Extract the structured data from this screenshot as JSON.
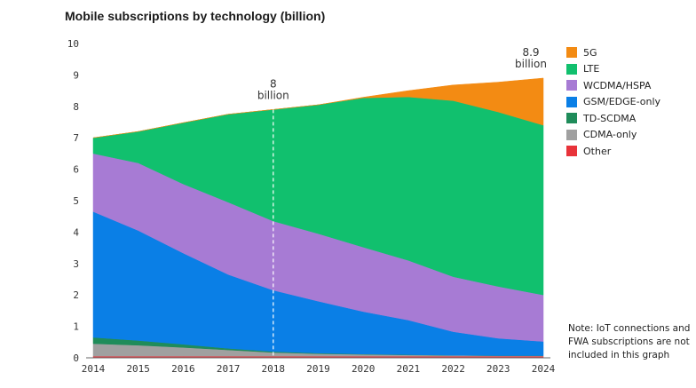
{
  "chart_data": {
    "type": "area",
    "title": "Mobile subscriptions by technology (billion)",
    "x": [
      "2014",
      "2015",
      "2016",
      "2017",
      "2018",
      "2019",
      "2020",
      "2021",
      "2022",
      "2023",
      "2024"
    ],
    "ylim": [
      0,
      10
    ],
    "yticks": [
      0,
      1,
      2,
      3,
      4,
      5,
      6,
      7,
      8,
      9,
      10
    ],
    "grid": false,
    "stacked": true,
    "series": [
      {
        "name": "Other",
        "color": "#e8333a",
        "values": [
          0.05,
          0.05,
          0.05,
          0.05,
          0.05,
          0.05,
          0.05,
          0.05,
          0.05,
          0.05,
          0.05
        ]
      },
      {
        "name": "CDMA-only",
        "color": "#a0a0a0",
        "values": [
          0.4,
          0.35,
          0.28,
          0.2,
          0.12,
          0.08,
          0.06,
          0.04,
          0.03,
          0.02,
          0.02
        ]
      },
      {
        "name": "TD-SCDMA",
        "color": "#1f8c5a",
        "values": [
          0.2,
          0.15,
          0.1,
          0.05,
          0.03,
          0.02,
          0.01,
          0.01,
          0.0,
          0.0,
          0.0
        ]
      },
      {
        "name": "GSM/EDGE-only",
        "color": "#0a7fe6",
        "values": [
          4.0,
          3.5,
          2.9,
          2.35,
          1.95,
          1.65,
          1.35,
          1.1,
          0.75,
          0.55,
          0.45
        ]
      },
      {
        "name": "WCDMA/HSPA",
        "color": "#a77bd4",
        "values": [
          1.85,
          2.15,
          2.2,
          2.3,
          2.2,
          2.15,
          2.05,
          1.9,
          1.75,
          1.65,
          1.48
        ]
      },
      {
        "name": "LTE",
        "color": "#11c06e",
        "values": [
          0.5,
          1.0,
          1.95,
          2.8,
          3.55,
          4.1,
          4.75,
          5.2,
          5.6,
          5.55,
          5.4
        ]
      },
      {
        "name": "5G",
        "color": "#f38b13",
        "values": [
          0.0,
          0.0,
          0.0,
          0.0,
          0.0,
          0.0,
          0.02,
          0.2,
          0.5,
          0.95,
          1.5
        ]
      }
    ],
    "annotations": [
      {
        "x": "2018",
        "lines": [
          "8",
          "billion"
        ]
      },
      {
        "x": "2024",
        "lines": [
          "8.9",
          "billion"
        ]
      }
    ],
    "legend_order": [
      "5G",
      "LTE",
      "WCDMA/HSPA",
      "GSM/EDGE-only",
      "TD-SCDMA",
      "CDMA-only",
      "Other"
    ],
    "legend_position": "right",
    "note": [
      "Note: IoT connections and",
      "FWA subscriptions are not",
      "included in this graph"
    ]
  }
}
